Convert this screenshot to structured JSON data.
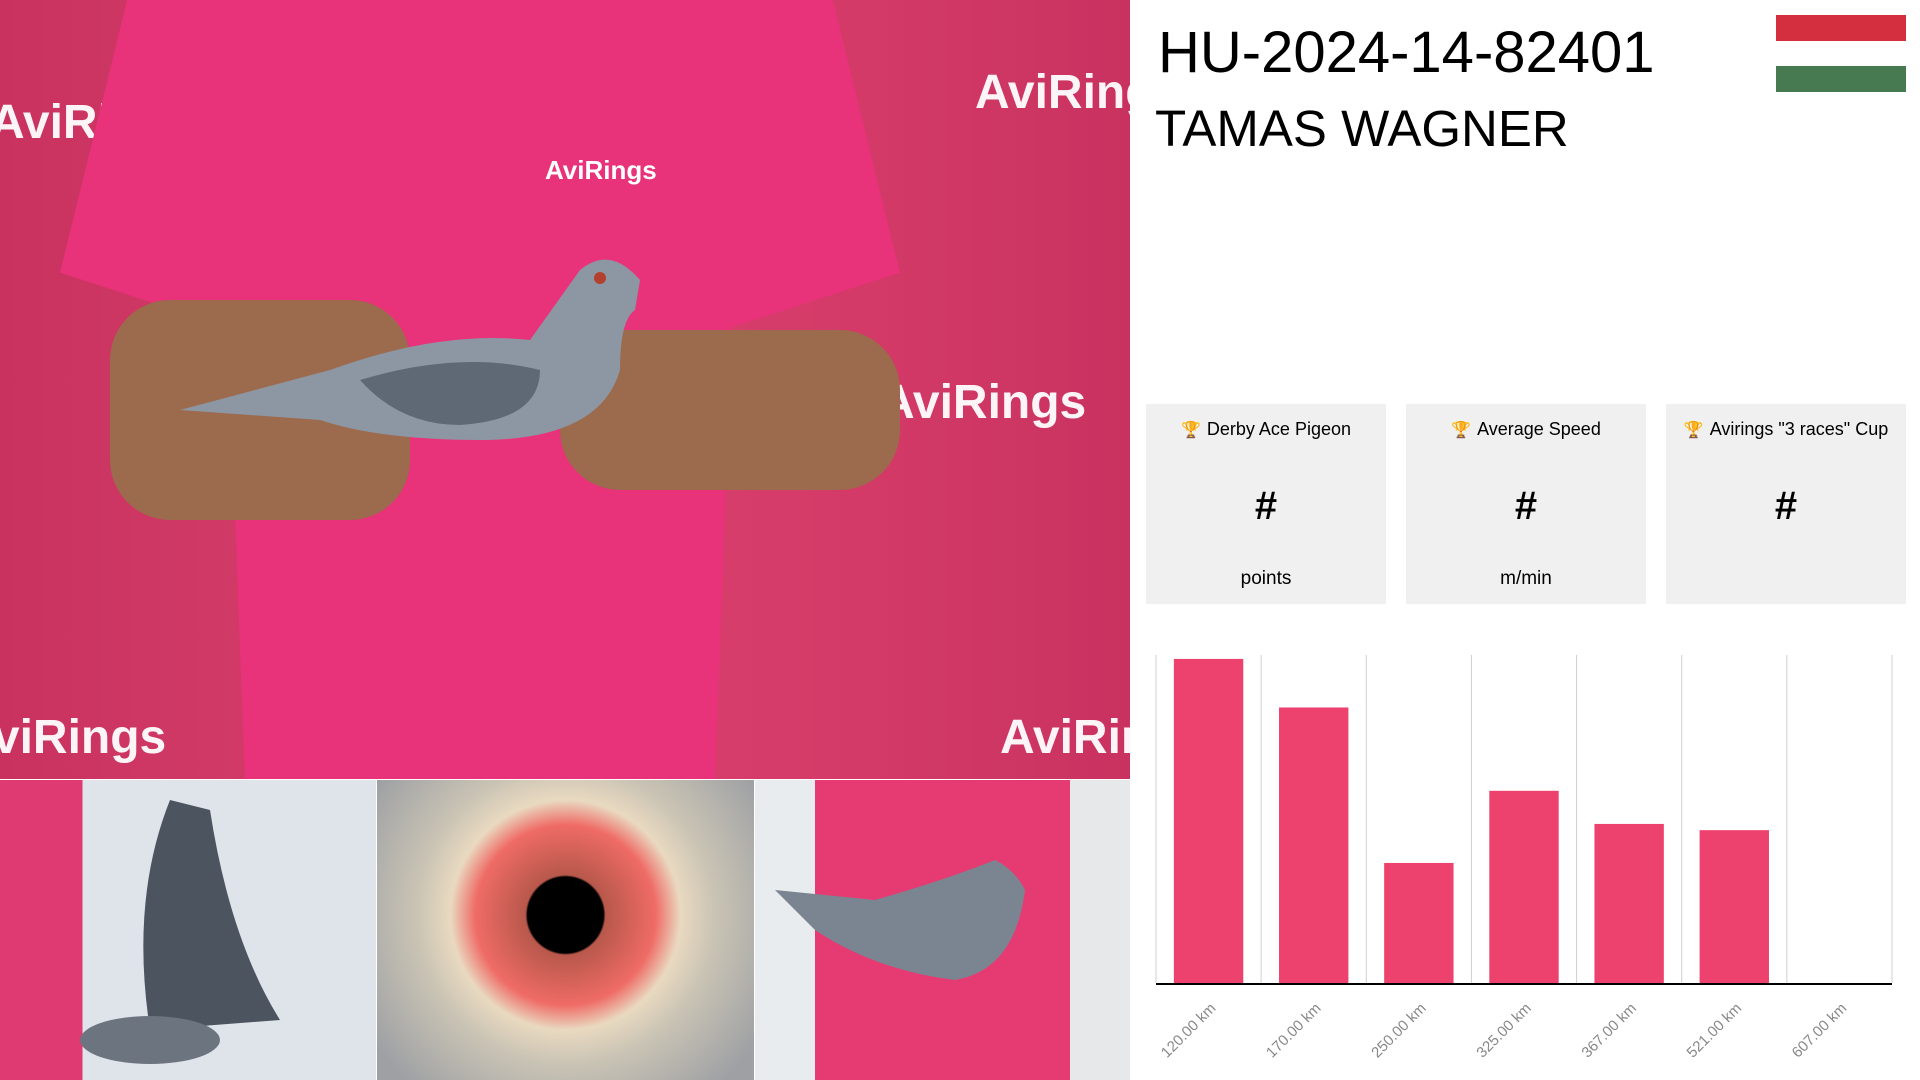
{
  "photos": {
    "main_alt_logos": [
      "AviRings",
      "AviRings",
      "AviRings",
      "AviRings",
      "AviRings"
    ],
    "shirt_logo": "AviRings"
  },
  "header": {
    "ring_number": "HU-2024-14-82401",
    "owner_name": "TAMAS WAGNER",
    "flag": {
      "country": "Hungary",
      "colors": [
        "#d32f3f",
        "#ffffff",
        "#477a50"
      ]
    }
  },
  "cards": [
    {
      "icon": "trophy-icon",
      "title": "Derby Ace Pigeon",
      "value": "#",
      "unit": "points"
    },
    {
      "icon": "trophy-icon",
      "title": "Average Speed",
      "value": "#",
      "unit": "m/min"
    },
    {
      "icon": "trophy-icon",
      "title": "Avirings \"3 races\" Cup",
      "value": "#",
      "unit": ""
    }
  ],
  "chart_data": {
    "type": "bar",
    "categories": [
      "120.00 km",
      "170.00 km",
      "250.00 km",
      "325.00 km",
      "367.00 km",
      "521.00 km",
      "607.00 km"
    ],
    "values": [
      98.8,
      84,
      36.6,
      58.6,
      48.5,
      46.6,
      null
    ],
    "ylim": [
      0,
      100
    ],
    "grid": "vertical",
    "bar_color": "#ee426e",
    "xlabel": "",
    "ylabel": ""
  }
}
